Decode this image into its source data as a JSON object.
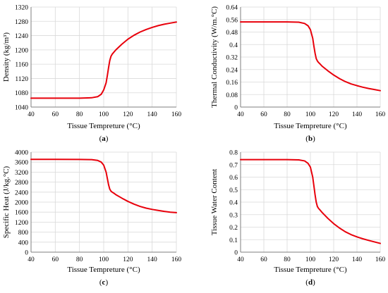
{
  "figure": {
    "charts": [
      {
        "caption": "a",
        "xlabel": "Tissue Tempreture (°C)",
        "ylabel": "Density (kg/m³)"
      },
      {
        "caption": "b",
        "xlabel": "Tissue Tempreture (°C)",
        "ylabel": "Thermal Conductivity (W/m.°C)"
      },
      {
        "caption": "c",
        "xlabel": "Tissue Tempreture (°C)",
        "ylabel": "Specific Heat (J/kg.°C)"
      },
      {
        "caption": "d",
        "xlabel": "Tissue Tempreture (°C)",
        "ylabel": "Tissue Water Content"
      }
    ]
  },
  "chart_data": [
    {
      "type": "line",
      "title": "",
      "xlabel": "Tissue Tempreture (°C)",
      "ylabel": "Density (kg/m³)",
      "xlim": [
        40,
        160
      ],
      "ylim": [
        1040,
        1320
      ],
      "xticks": [
        "40",
        "60",
        "80",
        "100",
        "120",
        "140",
        "160"
      ],
      "yticks": [
        "1040",
        "1080",
        "1120",
        "1160",
        "1200",
        "1240",
        "1280",
        "1320"
      ],
      "grid": true,
      "line_color": "#e8000b",
      "series": [
        {
          "x": [
            40,
            60,
            80,
            90,
            95,
            98,
            100,
            102,
            103,
            104,
            105,
            106,
            107,
            108,
            110,
            115,
            120,
            125,
            130,
            135,
            140,
            145,
            150,
            155,
            160
          ],
          "values": [
            1065,
            1065,
            1065,
            1066,
            1069,
            1076,
            1088,
            1108,
            1128,
            1150,
            1170,
            1182,
            1188,
            1192,
            1200,
            1216,
            1230,
            1241,
            1250,
            1257,
            1263,
            1268,
            1272,
            1275,
            1278
          ]
        }
      ]
    },
    {
      "type": "line",
      "title": "",
      "xlabel": "Tissue Tempreture (°C)",
      "ylabel": "Thermal Conductivity (W/m.°C)",
      "xlim": [
        40,
        160
      ],
      "ylim": [
        0,
        0.64
      ],
      "xticks": [
        "40",
        "60",
        "80",
        "100",
        "120",
        "140",
        "160"
      ],
      "yticks": [
        "0",
        "0.08",
        "0.16",
        "0.24",
        "0.32",
        "0.4",
        "0.48",
        "0.56",
        "0.64"
      ],
      "grid": true,
      "line_color": "#e8000b",
      "series": [
        {
          "x": [
            40,
            60,
            80,
            90,
            95,
            98,
            100,
            102,
            103,
            104,
            105,
            106,
            107,
            108,
            110,
            115,
            120,
            125,
            130,
            135,
            140,
            145,
            150,
            155,
            160
          ],
          "values": [
            0.545,
            0.545,
            0.545,
            0.543,
            0.535,
            0.52,
            0.495,
            0.44,
            0.39,
            0.345,
            0.31,
            0.295,
            0.285,
            0.278,
            0.262,
            0.232,
            0.205,
            0.182,
            0.163,
            0.148,
            0.137,
            0.127,
            0.119,
            0.112,
            0.105
          ]
        }
      ]
    },
    {
      "type": "line",
      "title": "",
      "xlabel": "Tissue Tempreture (°C)",
      "ylabel": "Specific Heat (J/kg.°C)",
      "xlim": [
        40,
        160
      ],
      "ylim": [
        0,
        4000
      ],
      "xticks": [
        "40",
        "60",
        "80",
        "100",
        "120",
        "140",
        "160"
      ],
      "yticks": [
        "0",
        "400",
        "800",
        "1200",
        "1600",
        "2000",
        "2400",
        "2800",
        "3200",
        "3600",
        "4000"
      ],
      "grid": true,
      "line_color": "#e8000b",
      "series": [
        {
          "x": [
            40,
            60,
            80,
            90,
            95,
            98,
            100,
            102,
            103,
            104,
            105,
            106,
            107,
            108,
            110,
            115,
            120,
            125,
            130,
            135,
            140,
            145,
            150,
            155,
            160
          ],
          "values": [
            3710,
            3710,
            3708,
            3700,
            3670,
            3600,
            3480,
            3200,
            2950,
            2700,
            2520,
            2440,
            2400,
            2370,
            2300,
            2160,
            2030,
            1920,
            1830,
            1760,
            1710,
            1670,
            1630,
            1600,
            1580
          ]
        }
      ]
    },
    {
      "type": "line",
      "title": "",
      "xlabel": "Tissue Tempreture (°C)",
      "ylabel": "Tissue Water Content",
      "xlim": [
        40,
        160
      ],
      "ylim": [
        0,
        0.8
      ],
      "xticks": [
        "40",
        "60",
        "80",
        "100",
        "120",
        "140",
        "160"
      ],
      "yticks": [
        "0",
        "0.1",
        "0.2",
        "0.3",
        "0.4",
        "0.5",
        "0.6",
        "0.7",
        "0.8"
      ],
      "grid": true,
      "line_color": "#e8000b",
      "series": [
        {
          "x": [
            40,
            60,
            80,
            90,
            95,
            98,
            100,
            102,
            103,
            104,
            105,
            106,
            107,
            108,
            110,
            115,
            120,
            125,
            130,
            135,
            140,
            145,
            150,
            155,
            160
          ],
          "values": [
            0.74,
            0.74,
            0.74,
            0.738,
            0.73,
            0.71,
            0.68,
            0.6,
            0.53,
            0.46,
            0.4,
            0.365,
            0.35,
            0.34,
            0.318,
            0.27,
            0.228,
            0.193,
            0.163,
            0.14,
            0.122,
            0.107,
            0.094,
            0.082,
            0.07
          ]
        }
      ]
    }
  ]
}
